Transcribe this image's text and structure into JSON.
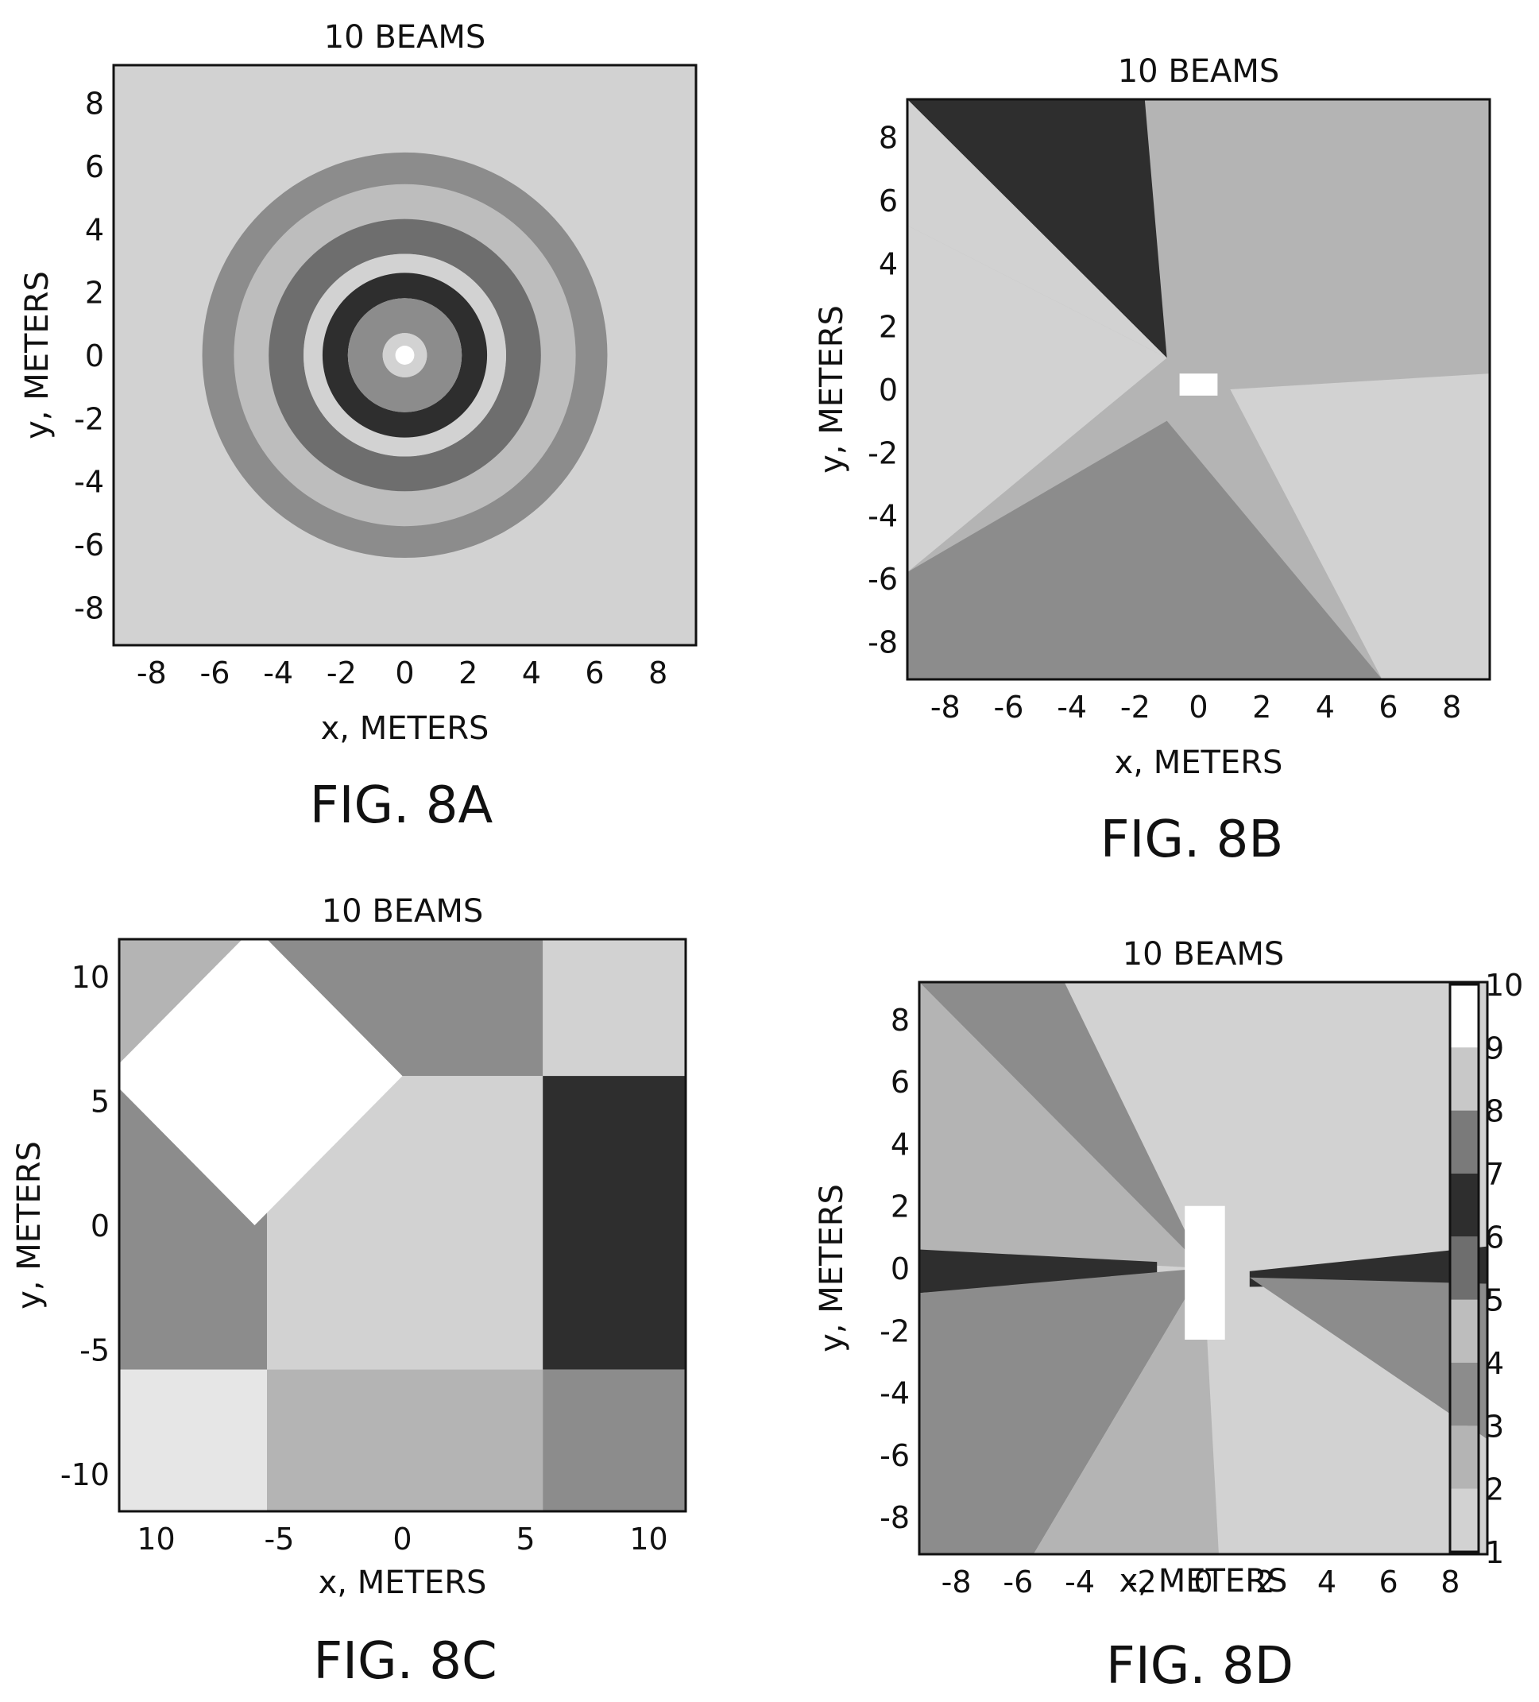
{
  "chart_data": [
    {
      "id": "8A",
      "type": "heatmap",
      "title": "10 BEAMS",
      "xlabel": "x, METERS",
      "ylabel": "y, METERS",
      "caption": "FIG. 8A",
      "xlim": [
        -9.2,
        9.2
      ],
      "ylim": [
        -9.2,
        9.2
      ],
      "xticks": [
        -8,
        -6,
        -4,
        -2,
        0,
        2,
        4,
        6,
        8
      ],
      "yticks": [
        8,
        6,
        4,
        2,
        0,
        -2,
        -4,
        -6,
        -8
      ],
      "background_level": 2,
      "pattern": "concentric-rings",
      "rings": [
        {
          "level": 4,
          "r": [
            3.2,
            6.4
          ]
        },
        {
          "level": 5,
          "r": [
            3.2,
            5.4
          ]
        },
        {
          "level": 6,
          "r": [
            3.2,
            4.3
          ]
        },
        {
          "level": 2,
          "r": [
            2.6,
            3.2
          ]
        },
        {
          "level": 7,
          "r": [
            1.8,
            2.6
          ]
        },
        {
          "level": 4,
          "r": [
            0.7,
            1.8
          ]
        },
        {
          "level": 2,
          "r": [
            0.3,
            0.7
          ]
        },
        {
          "level": 10,
          "r": [
            0,
            0.3
          ]
        }
      ]
    },
    {
      "id": "8B",
      "type": "heatmap",
      "title": "10 BEAMS",
      "xlabel": "x, METERS",
      "ylabel": "y, METERS",
      "caption": "FIG. 8B",
      "xlim": [
        -9.2,
        9.2
      ],
      "ylim": [
        -9.2,
        9.2
      ],
      "xticks": [
        -8,
        -6,
        -4,
        -2,
        0,
        2,
        4,
        6,
        8
      ],
      "yticks": [
        8,
        6,
        4,
        2,
        0,
        -2,
        -4,
        -6,
        -8
      ],
      "background_level": 3,
      "pattern": "angular-sectors",
      "regions": [
        {
          "level": 3,
          "points": [
            [
              -1,
              1
            ],
            [
              -9.2,
              9.2
            ],
            [
              9.2,
              9.2
            ],
            [
              9.2,
              0.5
            ],
            [
              1,
              0.5
            ]
          ]
        },
        {
          "level": 7,
          "points": [
            [
              -1,
              1
            ],
            [
              -9.2,
              9.2
            ],
            [
              -1.7,
              9.2
            ]
          ]
        },
        {
          "level": 2,
          "points": [
            [
              -1,
              1
            ],
            [
              -9.2,
              5.2
            ],
            [
              -9.2,
              9.2
            ]
          ]
        },
        {
          "level": 2,
          "points": [
            [
              -1,
              1
            ],
            [
              -9.2,
              5.2
            ],
            [
              -9.2,
              -5.8
            ]
          ]
        },
        {
          "level": 4,
          "points": [
            [
              -1,
              -1
            ],
            [
              -9.2,
              -5.8
            ],
            [
              -9.2,
              -9.2
            ],
            [
              5.8,
              -9.2
            ]
          ]
        },
        {
          "level": 2,
          "points": [
            [
              1,
              0
            ],
            [
              9.2,
              0.5
            ],
            [
              9.2,
              -9.2
            ],
            [
              5.8,
              -9.2
            ]
          ]
        },
        {
          "level": 10,
          "points": [
            [
              -0.6,
              0.5
            ],
            [
              0.6,
              0.5
            ],
            [
              0.6,
              -0.2
            ],
            [
              -0.6,
              -0.2
            ]
          ]
        }
      ]
    },
    {
      "id": "8C",
      "type": "heatmap",
      "title": "10 BEAMS",
      "xlabel": "x, METERS",
      "ylabel": "y, METERS",
      "caption": "FIG. 8C",
      "xlim": [
        -11.5,
        11.5
      ],
      "ylim": [
        -11.5,
        11.5
      ],
      "xticks": [
        -10,
        -5,
        0,
        5,
        10
      ],
      "xtick_labels": [
        "10",
        "-5",
        "0",
        "5",
        "10"
      ],
      "yticks": [
        10,
        5,
        0,
        -5,
        -10
      ],
      "background_level": 2,
      "pattern": "rectangular-blocks",
      "regions": [
        {
          "level": 3,
          "points": [
            [
              -11.5,
              11.5
            ],
            [
              -5.5,
              11.5
            ],
            [
              -5.5,
              6
            ],
            [
              -11.5,
              6
            ]
          ]
        },
        {
          "level": 4,
          "points": [
            [
              -11.5,
              6
            ],
            [
              -5.5,
              6
            ],
            [
              -5.5,
              -5.8
            ],
            [
              -11.5,
              -5.8
            ]
          ]
        },
        {
          "level": 4,
          "points": [
            [
              -5.5,
              11.5
            ],
            [
              5.7,
              11.5
            ],
            [
              5.7,
              6
            ],
            [
              -5.5,
              6
            ]
          ]
        },
        {
          "level": 2,
          "points": [
            [
              5.7,
              11.5
            ],
            [
              11.5,
              11.5
            ],
            [
              11.5,
              6
            ],
            [
              5.7,
              6
            ]
          ]
        },
        {
          "level": 2,
          "points": [
            [
              -5.5,
              6
            ],
            [
              5.7,
              6
            ],
            [
              5.7,
              -5.8
            ],
            [
              -5.5,
              -5.8
            ]
          ]
        },
        {
          "level": 7,
          "points": [
            [
              5.7,
              6
            ],
            [
              11.5,
              6
            ],
            [
              11.5,
              -5.8
            ],
            [
              5.7,
              -5.8
            ]
          ]
        },
        {
          "level": 1,
          "points": [
            [
              -11.5,
              -5.8
            ],
            [
              -5.5,
              -5.8
            ],
            [
              -5.5,
              -11.5
            ],
            [
              -11.5,
              -11.5
            ]
          ]
        },
        {
          "level": 3,
          "points": [
            [
              -5.5,
              -5.8
            ],
            [
              5.7,
              -5.8
            ],
            [
              5.7,
              -11.5
            ],
            [
              -5.5,
              -11.5
            ]
          ]
        },
        {
          "level": 4,
          "points": [
            [
              5.7,
              -5.8
            ],
            [
              11.5,
              -5.8
            ],
            [
              11.5,
              -11.5
            ],
            [
              5.7,
              -11.5
            ]
          ]
        },
        {
          "level": 10,
          "points": [
            [
              -6,
              12
            ],
            [
              0,
              6
            ],
            [
              -6,
              0
            ],
            [
              -12,
              6
            ]
          ]
        }
      ]
    },
    {
      "id": "8D",
      "type": "heatmap",
      "title": "10 BEAMS",
      "xlabel": "x, METERS",
      "ylabel": "y, METERS",
      "caption": "FIG. 8D",
      "xlim": [
        -9.2,
        9.2
      ],
      "ylim": [
        -9.2,
        9.2
      ],
      "xticks": [
        -8,
        -6,
        -4,
        -2,
        0,
        2,
        4,
        6,
        8
      ],
      "yticks": [
        8,
        6,
        4,
        2,
        0,
        -2,
        -4,
        -6,
        -8
      ],
      "background_level": 2,
      "pattern": "angular-sectors",
      "colorbar": {
        "min": 1,
        "max": 10,
        "ticks": [
          10,
          9,
          8,
          7,
          6,
          5,
          4,
          3,
          2,
          1
        ]
      },
      "regions": [
        {
          "level": 4,
          "points": [
            [
              0,
              0
            ],
            [
              -9.2,
              9.2
            ],
            [
              -4.5,
              9.2
            ]
          ]
        },
        {
          "level": 3,
          "points": [
            [
              0,
              0
            ],
            [
              -9.2,
              9.2
            ],
            [
              -9.2,
              0.5
            ]
          ]
        },
        {
          "level": 7,
          "points": [
            [
              -1.5,
              0.2
            ],
            [
              -9.2,
              0.6
            ],
            [
              -9.2,
              -0.8
            ],
            [
              -1.5,
              -0.3
            ]
          ]
        },
        {
          "level": 4,
          "points": [
            [
              0,
              0
            ],
            [
              -9.2,
              -0.8
            ],
            [
              -9.2,
              -9.2
            ],
            [
              -5.5,
              -9.2
            ]
          ]
        },
        {
          "level": 3,
          "points": [
            [
              0,
              0
            ],
            [
              -5.5,
              -9.2
            ],
            [
              0.5,
              -9.2
            ]
          ]
        },
        {
          "level": 7,
          "points": [
            [
              1.5,
              -0.1
            ],
            [
              9.2,
              0.7
            ],
            [
              9.2,
              -0.5
            ],
            [
              1.5,
              -0.6
            ]
          ]
        },
        {
          "level": 4,
          "points": [
            [
              1.5,
              -0.3
            ],
            [
              9.2,
              -0.5
            ],
            [
              9.2,
              -5.5
            ]
          ]
        },
        {
          "level": 10,
          "points": [
            [
              -0.6,
              2
            ],
            [
              0.7,
              2
            ],
            [
              0.7,
              -2.3
            ],
            [
              -0.6,
              -2.3
            ]
          ]
        }
      ]
    }
  ]
}
